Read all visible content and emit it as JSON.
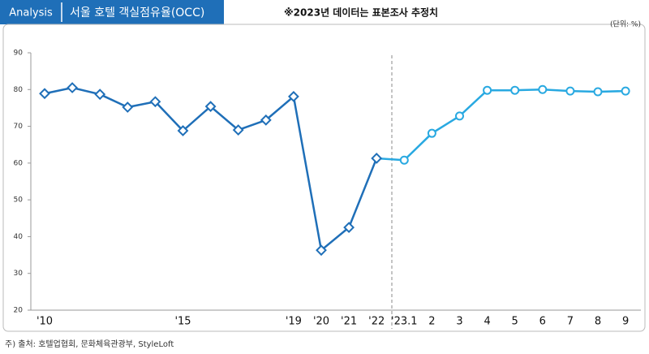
{
  "header": {
    "label": "Analysis",
    "title": "서울 호텔 객실점유율(OCC)",
    "note": "※2023년 데이터는 표본조사 추정치"
  },
  "chart_data": {
    "type": "line",
    "unit": "(단위: %)",
    "categories": [
      "'10",
      null,
      null,
      null,
      null,
      "'15",
      null,
      null,
      null,
      "'19",
      "'20",
      "'21",
      "'22",
      "'23.1",
      "2",
      "3",
      "4",
      "5",
      "6",
      "7",
      "8",
      "9"
    ],
    "series": [
      {
        "color": "#1f6fb8",
        "marker": "diamond",
        "values": [
          78.9,
          80.5,
          78.7,
          75.2,
          76.7,
          68.8,
          75.4,
          69.0,
          71.7,
          78.1,
          36.3,
          42.5,
          61.3,
          null,
          null,
          null,
          null,
          null,
          null,
          null,
          null,
          null
        ]
      },
      {
        "color": "#29a9e1",
        "marker": "circle",
        "values": [
          null,
          null,
          null,
          null,
          null,
          null,
          null,
          null,
          null,
          null,
          null,
          null,
          null,
          60.8,
          68.1,
          72.8,
          79.8,
          79.8,
          80.0,
          79.6,
          79.4,
          79.6
        ]
      }
    ],
    "ylim": [
      20,
      90
    ],
    "yticks": [
      20,
      30,
      40,
      50,
      60,
      70,
      80,
      90
    ]
  },
  "footer": {
    "source": "주) 출처: 호텔업협회, 문화체육관광부, StyleLoft"
  }
}
